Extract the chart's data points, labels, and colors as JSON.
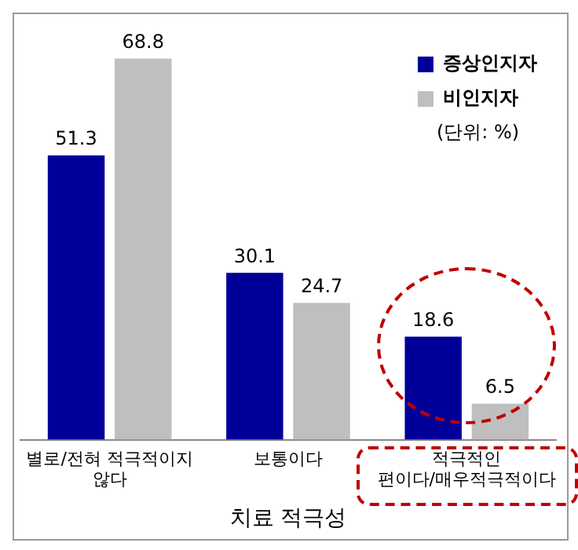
{
  "chart_data": {
    "type": "bar",
    "xlabel": "치료 적극성",
    "categories": [
      "별로/전혀 적극적이지 않다",
      "보통이다",
      "적극적인 편이다/매우적극적이다"
    ],
    "series": [
      {
        "name": "증상인지자",
        "color": "#000099",
        "values": [
          51.3,
          30.1,
          18.6
        ]
      },
      {
        "name": "비인지자",
        "color": "#bfbfbf",
        "values": [
          68.8,
          24.7,
          6.5
        ]
      }
    ],
    "annotations": [
      "(단위: %)"
    ],
    "data_labels": true,
    "legend": "top right",
    "grid": false,
    "tick_labels": "x"
  }
}
